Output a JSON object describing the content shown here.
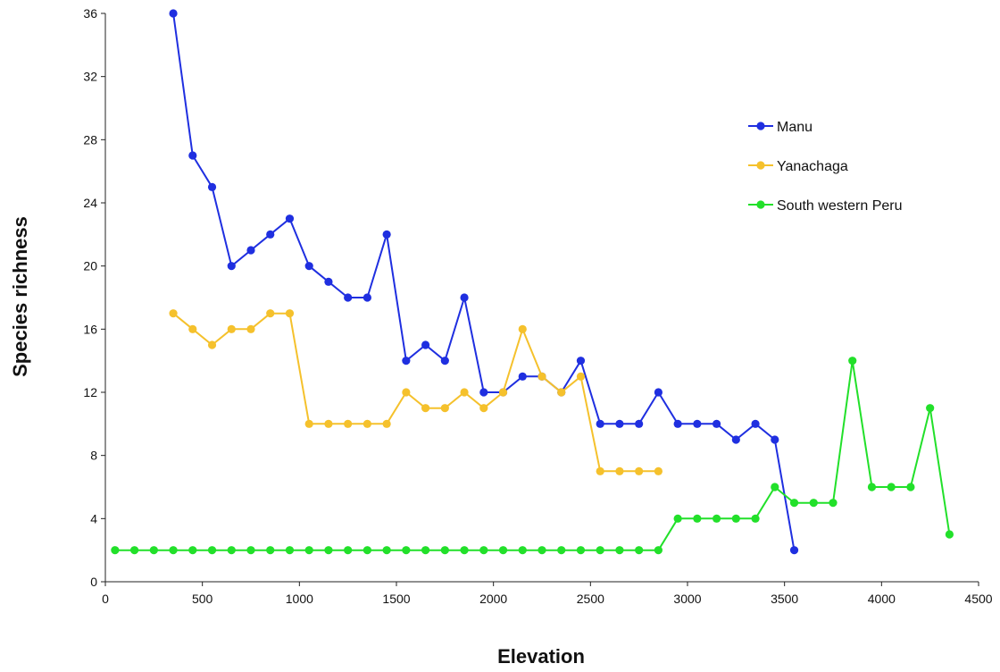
{
  "chart_data": {
    "type": "line",
    "title": "",
    "xlabel": "Elevation",
    "ylabel": "Species richness",
    "xlim": [
      0,
      4500
    ],
    "ylim": [
      0,
      36
    ],
    "xticks": [
      0,
      500,
      1000,
      1500,
      2000,
      2500,
      3000,
      3500,
      4000,
      4500
    ],
    "yticks": [
      0,
      4,
      8,
      12,
      16,
      20,
      24,
      28,
      32,
      36
    ],
    "grid": false,
    "legend_position": "top-right",
    "series": [
      {
        "name": "Manu",
        "color": "#1f2fe0",
        "x": [
          350,
          450,
          550,
          650,
          750,
          850,
          950,
          1050,
          1150,
          1250,
          1350,
          1450,
          1550,
          1650,
          1750,
          1850,
          1950,
          2050,
          2150,
          2250,
          2350,
          2450,
          2550,
          2650,
          2750,
          2850,
          2950,
          3050,
          3150,
          3250,
          3350,
          3450,
          3550
        ],
        "y": [
          36,
          27,
          25,
          20,
          21,
          22,
          23,
          20,
          19,
          18,
          18,
          22,
          14,
          15,
          14,
          18,
          12,
          12,
          13,
          13,
          12,
          14,
          10,
          10,
          10,
          12,
          10,
          10,
          10,
          9,
          10,
          9,
          2
        ]
      },
      {
        "name": "Yanachaga",
        "color": "#f5c12c",
        "x": [
          350,
          450,
          550,
          650,
          750,
          850,
          950,
          1050,
          1150,
          1250,
          1350,
          1450,
          1550,
          1650,
          1750,
          1850,
          1950,
          2050,
          2150,
          2250,
          2350,
          2450,
          2550,
          2650,
          2750,
          2850
        ],
        "y": [
          17,
          16,
          15,
          16,
          16,
          17,
          17,
          10,
          10,
          10,
          10,
          10,
          12,
          11,
          11,
          12,
          11,
          12,
          16,
          13,
          12,
          13,
          7,
          7,
          7,
          7
        ]
      },
      {
        "name": "South western Peru",
        "color": "#22e02a",
        "x": [
          50,
          150,
          250,
          350,
          450,
          550,
          650,
          750,
          850,
          950,
          1050,
          1150,
          1250,
          1350,
          1450,
          1550,
          1650,
          1750,
          1850,
          1950,
          2050,
          2150,
          2250,
          2350,
          2450,
          2550,
          2650,
          2750,
          2850,
          2950,
          3050,
          3150,
          3250,
          3350,
          3450,
          3550,
          3650,
          3750,
          3850,
          3950,
          4050,
          4150,
          4250,
          4350
        ],
        "y": [
          2,
          2,
          2,
          2,
          2,
          2,
          2,
          2,
          2,
          2,
          2,
          2,
          2,
          2,
          2,
          2,
          2,
          2,
          2,
          2,
          2,
          2,
          2,
          2,
          2,
          2,
          2,
          2,
          2,
          4,
          4,
          4,
          4,
          4,
          6,
          5,
          5,
          5,
          14,
          6,
          6,
          6,
          11,
          3
        ]
      }
    ]
  }
}
